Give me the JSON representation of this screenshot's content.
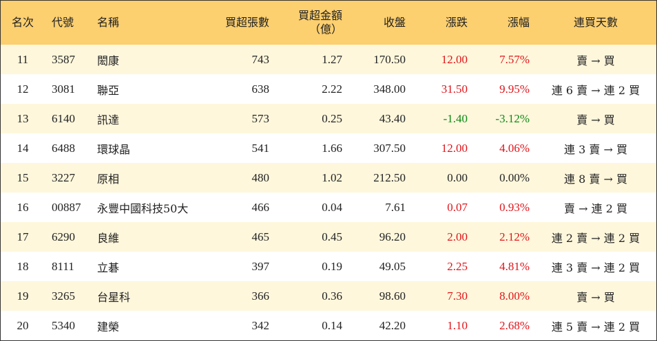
{
  "headers": {
    "rank": "名次",
    "code": "代號",
    "name": "名稱",
    "volume": "買超張數",
    "amount_line1": "買超金額",
    "amount_line2": "（億）",
    "close": "收盤",
    "change": "漲跌",
    "change_pct": "漲幅",
    "days": "連買天數"
  },
  "colors": {
    "header_bg": "#fccf6f",
    "row_alt_bg": "#fef7dc",
    "up": "#e0141a",
    "down": "#0f8a14",
    "flat": "#222222"
  },
  "rows": [
    {
      "rank": "11",
      "code": "3587",
      "name": "閎康",
      "volume": "743",
      "amount": "1.27",
      "close": "170.50",
      "change": "12.00",
      "change_pct": "7.57%",
      "direction": "up",
      "days": "賣 → 買"
    },
    {
      "rank": "12",
      "code": "3081",
      "name": "聯亞",
      "volume": "638",
      "amount": "2.22",
      "close": "348.00",
      "change": "31.50",
      "change_pct": "9.95%",
      "direction": "up",
      "days": "連 6 賣 → 連 2 買"
    },
    {
      "rank": "13",
      "code": "6140",
      "name": "訊達",
      "volume": "573",
      "amount": "0.25",
      "close": "43.40",
      "change": "-1.40",
      "change_pct": "-3.12%",
      "direction": "down",
      "days": "賣 → 買"
    },
    {
      "rank": "14",
      "code": "6488",
      "name": "環球晶",
      "volume": "541",
      "amount": "1.66",
      "close": "307.50",
      "change": "12.00",
      "change_pct": "4.06%",
      "direction": "up",
      "days": "連 3 賣 → 買"
    },
    {
      "rank": "15",
      "code": "3227",
      "name": "原相",
      "volume": "480",
      "amount": "1.02",
      "close": "212.50",
      "change": "0.00",
      "change_pct": "0.00%",
      "direction": "flat",
      "days": "連 8 賣 → 買"
    },
    {
      "rank": "16",
      "code": "00887",
      "name": "永豐中國科技50大",
      "volume": "466",
      "amount": "0.04",
      "close": "7.61",
      "change": "0.07",
      "change_pct": "0.93%",
      "direction": "up",
      "days": "賣 → 連 2 買"
    },
    {
      "rank": "17",
      "code": "6290",
      "name": "良維",
      "volume": "465",
      "amount": "0.45",
      "close": "96.20",
      "change": "2.00",
      "change_pct": "2.12%",
      "direction": "up",
      "days": "連 2 賣 → 連 2 買"
    },
    {
      "rank": "18",
      "code": "8111",
      "name": "立碁",
      "volume": "397",
      "amount": "0.19",
      "close": "49.05",
      "change": "2.25",
      "change_pct": "4.81%",
      "direction": "up",
      "days": "連 3 賣 → 連 2 買"
    },
    {
      "rank": "19",
      "code": "3265",
      "name": "台星科",
      "volume": "366",
      "amount": "0.36",
      "close": "98.60",
      "change": "7.30",
      "change_pct": "8.00%",
      "direction": "up",
      "days": "賣 → 買"
    },
    {
      "rank": "20",
      "code": "5340",
      "name": "建榮",
      "volume": "342",
      "amount": "0.14",
      "close": "42.20",
      "change": "1.10",
      "change_pct": "2.68%",
      "direction": "up",
      "days": "連 5 賣 → 連 2 買"
    }
  ]
}
